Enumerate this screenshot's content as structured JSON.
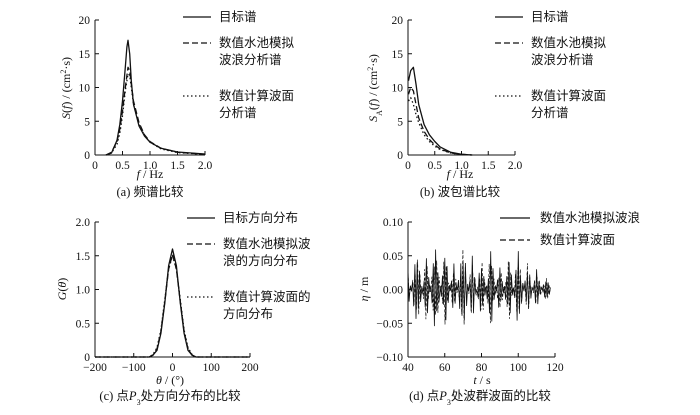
{
  "chart_data": [
    {
      "type": "line",
      "caption": "(a) 频谱比较",
      "xlabel": "f / Hz",
      "ylabel": "S(f) / (cm²·s)",
      "xlim": [
        0,
        2.0
      ],
      "ylim": [
        0,
        20
      ],
      "xticks": [
        "0",
        "0.5",
        "1.0",
        "1.5",
        "2.0"
      ],
      "yticks": [
        "0",
        "5",
        "10",
        "15",
        "20"
      ],
      "legend_position": "right",
      "series": [
        {
          "name": "目标谱",
          "style": "solid",
          "x": [
            0.2,
            0.3,
            0.4,
            0.45,
            0.5,
            0.55,
            0.58,
            0.6,
            0.63,
            0.66,
            0.7,
            0.8,
            0.9,
            1.0,
            1.2,
            1.5,
            2.0
          ],
          "y": [
            0,
            0.3,
            2.2,
            4.5,
            8.0,
            13.0,
            16.0,
            17.0,
            15.0,
            11.0,
            7.5,
            4.3,
            2.8,
            1.9,
            1.0,
            0.45,
            0.15
          ]
        },
        {
          "name": "数值水池模拟波浪分析谱",
          "style": "dashed",
          "x": [
            0.2,
            0.3,
            0.4,
            0.45,
            0.5,
            0.55,
            0.6,
            0.63,
            0.66,
            0.7,
            0.8,
            0.9,
            1.0,
            1.2,
            1.5,
            2.0
          ],
          "y": [
            0,
            0.4,
            2.0,
            3.8,
            6.5,
            10.0,
            13.0,
            12.5,
            10.5,
            8.0,
            4.8,
            3.0,
            2.0,
            1.0,
            0.4,
            0.1
          ]
        },
        {
          "name": "数值计算波面分析谱",
          "style": "dotted",
          "x": [
            0.2,
            0.3,
            0.4,
            0.45,
            0.5,
            0.55,
            0.6,
            0.63,
            0.66,
            0.7,
            0.8,
            0.9,
            1.0,
            1.2,
            1.5,
            2.0
          ],
          "y": [
            0,
            0.3,
            1.6,
            3.2,
            5.8,
            9.5,
            12.0,
            11.8,
            10.0,
            7.5,
            4.5,
            2.9,
            1.9,
            0.9,
            0.35,
            0.1
          ]
        }
      ]
    },
    {
      "type": "line",
      "caption": "(b) 波包谱比较",
      "xlabel": "f / Hz",
      "ylabel": "SA(f) / (cm²·s)",
      "xlim": [
        0,
        2.0
      ],
      "ylim": [
        0,
        20
      ],
      "xticks": [
        "0",
        "0.5",
        "1.0",
        "1.5",
        "2.0"
      ],
      "yticks": [
        "0",
        "5",
        "10",
        "15",
        "20"
      ],
      "legend_position": "right",
      "series": [
        {
          "name": "目标谱",
          "style": "solid",
          "x": [
            0.01,
            0.05,
            0.1,
            0.15,
            0.2,
            0.3,
            0.4,
            0.5,
            0.6,
            0.8,
            1.0,
            1.2
          ],
          "y": [
            11.0,
            12.5,
            13.0,
            10.5,
            7.5,
            4.5,
            3.0,
            2.0,
            1.2,
            0.4,
            0.1,
            0
          ]
        },
        {
          "name": "数值水池模拟波浪分析谱",
          "style": "dashed",
          "x": [
            0.01,
            0.05,
            0.1,
            0.15,
            0.2,
            0.3,
            0.4,
            0.5,
            0.6,
            0.8,
            1.0,
            1.2
          ],
          "y": [
            9.0,
            10.0,
            9.5,
            7.5,
            5.5,
            3.5,
            2.3,
            1.5,
            0.9,
            0.3,
            0.1,
            0
          ]
        },
        {
          "name": "数值计算波面分析谱",
          "style": "dotted",
          "x": [
            0.01,
            0.05,
            0.1,
            0.15,
            0.2,
            0.3,
            0.4,
            0.5,
            0.6,
            0.8,
            1.0,
            1.2
          ],
          "y": [
            8.0,
            8.5,
            7.5,
            6.0,
            4.8,
            3.0,
            2.0,
            1.3,
            0.8,
            0.3,
            0.05,
            0
          ]
        }
      ]
    },
    {
      "type": "line",
      "caption": "(c) 点P3处方向分布的比较",
      "xlabel": "θ / (°)",
      "ylabel": "G(θ)",
      "xlim": [
        -200,
        200
      ],
      "ylim": [
        0,
        2.0
      ],
      "xticks": [
        "−200",
        "−100",
        "0",
        "100",
        "200"
      ],
      "yticks": [
        "0",
        "0.5",
        "1.0",
        "1.5",
        "2.0"
      ],
      "legend_position": "right",
      "series": [
        {
          "name": "目标方向分布",
          "style": "solid",
          "x": [
            -200,
            -60,
            -50,
            -40,
            -30,
            -20,
            -10,
            0,
            10,
            20,
            30,
            40,
            50,
            60,
            200
          ],
          "y": [
            0,
            0,
            0.03,
            0.1,
            0.35,
            0.8,
            1.35,
            1.6,
            1.35,
            0.8,
            0.35,
            0.1,
            0.03,
            0,
            0
          ]
        },
        {
          "name": "数值水池模拟波浪的方向分布",
          "style": "dashed",
          "x": [
            -200,
            -60,
            -50,
            -40,
            -30,
            -20,
            -10,
            0,
            10,
            20,
            30,
            40,
            50,
            60,
            200
          ],
          "y": [
            0,
            0,
            0.03,
            0.12,
            0.38,
            0.82,
            1.3,
            1.52,
            1.3,
            0.82,
            0.38,
            0.12,
            0.03,
            0,
            0
          ]
        },
        {
          "name": "数值计算波面的方向分布",
          "style": "dotted",
          "x": [
            -200,
            -60,
            -50,
            -40,
            -30,
            -20,
            -10,
            0,
            10,
            20,
            30,
            40,
            50,
            60,
            200
          ],
          "y": [
            0,
            0,
            0.04,
            0.14,
            0.4,
            0.85,
            1.3,
            1.5,
            1.3,
            0.85,
            0.4,
            0.14,
            0.04,
            0,
            0
          ]
        }
      ]
    },
    {
      "type": "line",
      "caption": "(d) 点P3处波群波面的比较",
      "xlabel": "t / s",
      "ylabel": "η / m",
      "xlim": [
        40,
        120
      ],
      "ylim": [
        -0.1,
        0.1
      ],
      "xticks": [
        "40",
        "60",
        "80",
        "100",
        "120"
      ],
      "yticks": [
        "−0.10",
        "−0.05",
        "0.00",
        "0.05",
        "0.10"
      ],
      "legend_position": "top-right",
      "series": [
        {
          "name": "数值水池模拟波浪",
          "style": "solid",
          "x": [
            40,
            45,
            50,
            55,
            60,
            65,
            70,
            75,
            80,
            85,
            90,
            95,
            100,
            105,
            110,
            115,
            118
          ],
          "y": [
            0.03,
            -0.06,
            0.05,
            -0.07,
            0.06,
            -0.04,
            0.07,
            -0.05,
            0.05,
            -0.06,
            0.04,
            -0.05,
            0.06,
            -0.04,
            0.03,
            -0.02,
            0.0
          ]
        },
        {
          "name": "数值计算波面",
          "style": "dashed",
          "x": [
            40,
            45,
            50,
            55,
            60,
            65,
            70,
            75,
            80,
            85,
            90,
            95,
            100,
            105,
            110,
            115,
            118
          ],
          "y": [
            0.03,
            -0.055,
            0.05,
            -0.065,
            0.055,
            -0.04,
            0.065,
            -0.05,
            0.05,
            -0.055,
            0.04,
            -0.05,
            0.055,
            -0.04,
            0.03,
            -0.02,
            0.0
          ]
        }
      ]
    }
  ]
}
